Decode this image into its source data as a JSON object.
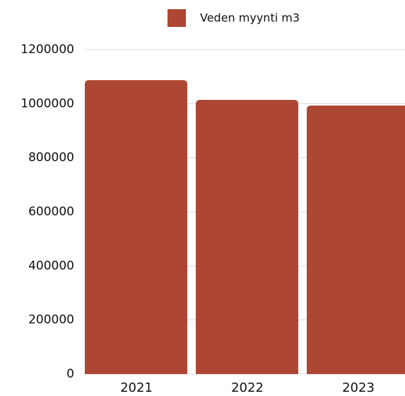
{
  "chart_data": {
    "type": "bar",
    "categories": [
      "2021",
      "2022",
      "2023"
    ],
    "series": [
      {
        "name": "Veden myynti m3",
        "color": "#ad4632",
        "values": [
          1087000,
          1014000,
          993000
        ]
      }
    ],
    "ylim": [
      0,
      1200000
    ],
    "yticks": [
      0,
      200000,
      400000,
      600000,
      800000,
      1000000,
      1200000
    ],
    "grid": true,
    "legend": "top"
  }
}
